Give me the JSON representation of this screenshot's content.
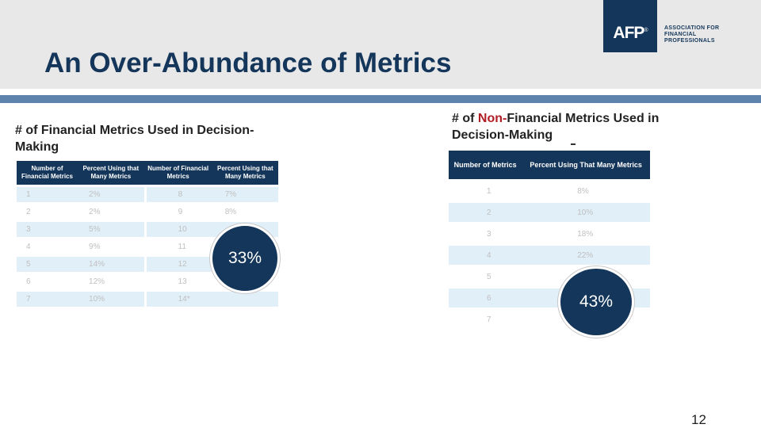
{
  "header": {
    "title": "An Over-Abundance of Metrics"
  },
  "logo": {
    "mark": "AFP",
    "mark_sup": "®",
    "lines": [
      "ASSOCIATION FOR",
      "FINANCIAL",
      "PROFESSIONALS"
    ]
  },
  "left": {
    "subtitle": "# of Financial Metrics Used in Decision-Making",
    "headers": [
      "Number of Financial Metrics",
      "Percent Using that Many Metrics",
      "Number of Financial Metrics",
      "Percent Using that Many Metrics"
    ],
    "rows": [
      [
        "1",
        "2%",
        "8",
        "7%"
      ],
      [
        "2",
        "2%",
        "9",
        "8%"
      ],
      [
        "3",
        "5%",
        "10",
        ""
      ],
      [
        "4",
        "9%",
        "11",
        ""
      ],
      [
        "5",
        "14%",
        "12",
        ""
      ],
      [
        "6",
        "12%",
        "13",
        ""
      ],
      [
        "7",
        "10%",
        "14*",
        ""
      ]
    ],
    "badge": "33%"
  },
  "right": {
    "subtitle_prefix": "# of ",
    "subtitle_highlight": "Non-",
    "subtitle_rest": "Financial Metrics Used in Decision-Making",
    "headers": [
      "Number of Metrics",
      "Percent Using That Many Metrics"
    ],
    "rows": [
      [
        "1",
        "8%"
      ],
      [
        "2",
        "10%"
      ],
      [
        "3",
        "18%"
      ],
      [
        "4",
        "22%"
      ],
      [
        "5",
        ""
      ],
      [
        "6",
        ""
      ],
      [
        "7",
        ""
      ]
    ],
    "badge": "43%"
  },
  "footer": {
    "page_number": "12"
  },
  "colors": {
    "navy": "#14365a",
    "rule": "#5e84ae",
    "highlight": "#b01d24",
    "row_alt": "#e1eff8"
  }
}
